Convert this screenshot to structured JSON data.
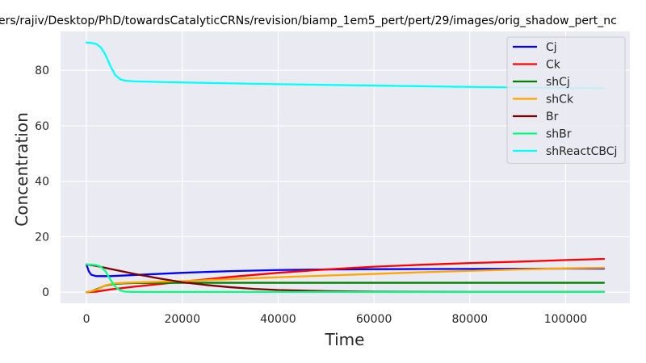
{
  "chart_data": {
    "type": "line",
    "title": "ers/rajiv/Desktop/PhD/towardsCatalyticCRNs/revision/biamp_1em5_pert/pert/29/images/orig_shadow_pert_nc",
    "xlabel": "Time",
    "ylabel": "Concentration",
    "xlim": [
      -5400,
      113400
    ],
    "ylim": [
      -4,
      94
    ],
    "xticks": [
      0,
      20000,
      40000,
      60000,
      80000,
      100000
    ],
    "xtick_labels": [
      "0",
      "20000",
      "40000",
      "60000",
      "80000",
      "100000"
    ],
    "yticks": [
      0,
      20,
      40,
      60,
      80
    ],
    "ytick_labels": [
      "0",
      "20",
      "40",
      "60",
      "80"
    ],
    "grid": true,
    "legend_position": "top-right",
    "series": [
      {
        "name": "Cj",
        "color": "#0000ff",
        "points": [
          [
            0,
            10
          ],
          [
            500,
            7.5
          ],
          [
            1000,
            6.3
          ],
          [
            2000,
            5.8
          ],
          [
            5000,
            5.8
          ],
          [
            10000,
            6.2
          ],
          [
            20000,
            7
          ],
          [
            30000,
            7.6
          ],
          [
            40000,
            8
          ],
          [
            50000,
            8.2
          ],
          [
            60000,
            8.3
          ],
          [
            70000,
            8.35
          ],
          [
            80000,
            8.4
          ],
          [
            90000,
            8.45
          ],
          [
            100000,
            8.5
          ],
          [
            108000,
            8.5
          ]
        ]
      },
      {
        "name": "Ck",
        "color": "#ff0000",
        "points": [
          [
            0,
            0
          ],
          [
            2000,
            0.2
          ],
          [
            5000,
            1
          ],
          [
            10000,
            2
          ],
          [
            20000,
            3.8
          ],
          [
            30000,
            5.5
          ],
          [
            40000,
            7
          ],
          [
            50000,
            8.2
          ],
          [
            60000,
            9.2
          ],
          [
            70000,
            9.9
          ],
          [
            80000,
            10.5
          ],
          [
            90000,
            11
          ],
          [
            100000,
            11.6
          ],
          [
            108000,
            12
          ]
        ]
      },
      {
        "name": "shCj",
        "color": "#008000",
        "points": [
          [
            0,
            0
          ],
          [
            1000,
            0.3
          ],
          [
            2000,
            1
          ],
          [
            4000,
            2.4
          ],
          [
            6000,
            3
          ],
          [
            8000,
            3.2
          ],
          [
            10000,
            3.3
          ],
          [
            20000,
            3.4
          ],
          [
            40000,
            3.4
          ],
          [
            60000,
            3.4
          ],
          [
            80000,
            3.4
          ],
          [
            108000,
            3.4
          ]
        ]
      },
      {
        "name": "shCk",
        "color": "#ffa500",
        "points": [
          [
            0,
            0
          ],
          [
            2000,
            0.8
          ],
          [
            4000,
            2.5
          ],
          [
            6000,
            3.2
          ],
          [
            8000,
            3.4
          ],
          [
            10000,
            3.5
          ],
          [
            20000,
            4
          ],
          [
            30000,
            4.7
          ],
          [
            40000,
            5.4
          ],
          [
            50000,
            6
          ],
          [
            60000,
            6.6
          ],
          [
            70000,
            7.2
          ],
          [
            80000,
            7.7
          ],
          [
            90000,
            8.2
          ],
          [
            100000,
            8.6
          ],
          [
            108000,
            8.8
          ]
        ]
      },
      {
        "name": "Br",
        "color": "#800000",
        "points": [
          [
            0,
            10
          ],
          [
            2000,
            9.5
          ],
          [
            5000,
            8.4
          ],
          [
            10000,
            6.6
          ],
          [
            15000,
            5
          ],
          [
            20000,
            3.6
          ],
          [
            25000,
            2.6
          ],
          [
            30000,
            1.8
          ],
          [
            35000,
            1.2
          ],
          [
            40000,
            0.8
          ],
          [
            50000,
            0.4
          ],
          [
            60000,
            0.2
          ],
          [
            80000,
            0.1
          ],
          [
            108000,
            0.1
          ]
        ]
      },
      {
        "name": "shBr",
        "color": "#00ff7f",
        "points": [
          [
            0,
            10
          ],
          [
            2000,
            9.8
          ],
          [
            3000,
            9.2
          ],
          [
            4000,
            7.5
          ],
          [
            5000,
            4.5
          ],
          [
            6000,
            2
          ],
          [
            7000,
            0.7
          ],
          [
            8000,
            0.2
          ],
          [
            10000,
            0.1
          ],
          [
            20000,
            0.1
          ],
          [
            60000,
            0.1
          ],
          [
            108000,
            0.1
          ]
        ]
      },
      {
        "name": "shReactCBCj",
        "color": "#00ffff",
        "points": [
          [
            0,
            90
          ],
          [
            1000,
            89.9
          ],
          [
            2000,
            89.5
          ],
          [
            3000,
            88.3
          ],
          [
            4000,
            85.5
          ],
          [
            5000,
            81.5
          ],
          [
            6000,
            78.3
          ],
          [
            7000,
            76.8
          ],
          [
            8000,
            76.3
          ],
          [
            10000,
            76
          ],
          [
            20000,
            75.6
          ],
          [
            40000,
            75
          ],
          [
            60000,
            74.5
          ],
          [
            80000,
            74
          ],
          [
            100000,
            73.6
          ],
          [
            108000,
            73.5
          ]
        ]
      }
    ]
  }
}
